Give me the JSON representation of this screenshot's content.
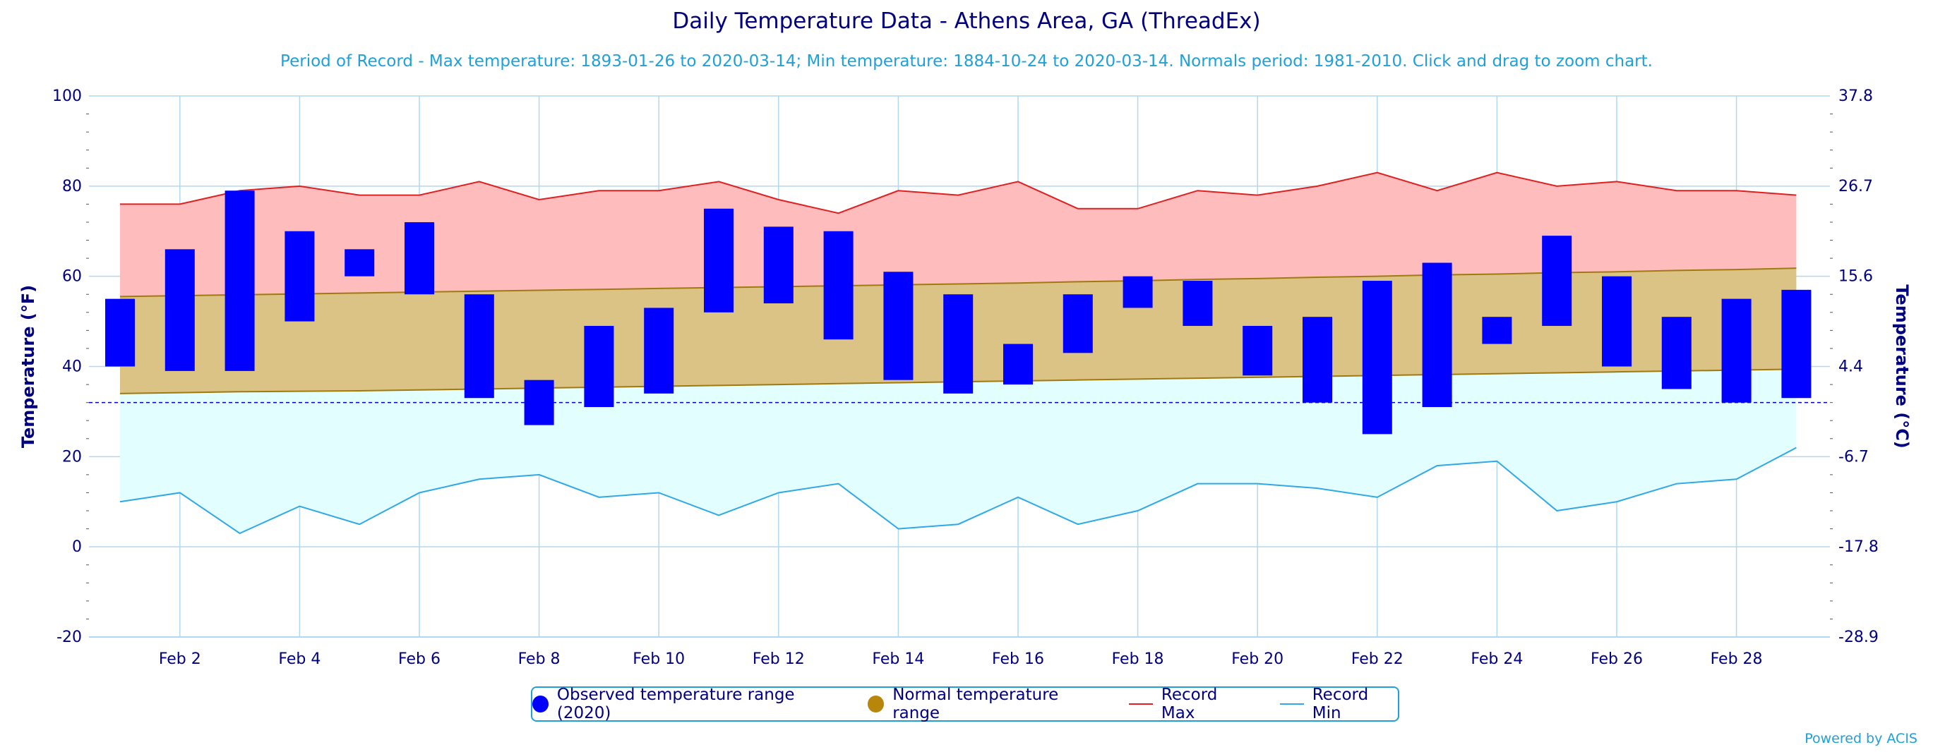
{
  "chart_data": {
    "type": "bar",
    "title": "Daily Temperature Data - Athens Area, GA (ThreadEx)",
    "subtitle": "Period of Record - Max temperature: 1893-01-26 to 2020-03-14; Min temperature: 1884-10-24 to 2020-03-14. Normals period: 1981-2010. Click and drag to zoom chart.",
    "ylabel": "Temperature (°F)",
    "y2label": "Temperature (°C)",
    "ylim": [
      -20,
      100
    ],
    "yticks": [
      -20,
      0,
      20,
      40,
      60,
      80,
      100
    ],
    "y2ticks": [
      "-28.9",
      "-17.8",
      "-6.7",
      "4.4",
      "15.6",
      "26.7",
      "37.8"
    ],
    "freezing_line": 32,
    "days": [
      1,
      2,
      3,
      4,
      5,
      6,
      7,
      8,
      9,
      10,
      11,
      12,
      13,
      14,
      15,
      16,
      17,
      18,
      19,
      20,
      21,
      22,
      23,
      24,
      25,
      26,
      27,
      28,
      29
    ],
    "xtick_labels": [
      "Feb 2",
      "Feb 4",
      "Feb 6",
      "Feb 8",
      "Feb 10",
      "Feb 12",
      "Feb 14",
      "Feb 16",
      "Feb 18",
      "Feb 20",
      "Feb 22",
      "Feb 24",
      "Feb 26",
      "Feb 28"
    ],
    "xtick_days": [
      2,
      4,
      6,
      8,
      10,
      12,
      14,
      16,
      18,
      20,
      22,
      24,
      26,
      28
    ],
    "series": [
      {
        "name": "Observed temperature range (2020)",
        "color": "#0000ff",
        "low": [
          40,
          39,
          39,
          50,
          60,
          56,
          33,
          27,
          31,
          34,
          52,
          54,
          46,
          37,
          34,
          36,
          43,
          53,
          49,
          38,
          32,
          25,
          31,
          45,
          49,
          40,
          35,
          32,
          33
        ],
        "high": [
          55,
          66,
          79,
          70,
          66,
          72,
          56,
          37,
          49,
          53,
          75,
          71,
          70,
          61,
          56,
          45,
          56,
          60,
          59,
          49,
          51,
          59,
          63,
          51,
          69,
          60,
          51,
          55,
          57
        ]
      },
      {
        "name": "Normal temperature range",
        "color": "#b8860b",
        "low": [
          34,
          34.2,
          34.4,
          34.5,
          34.6,
          34.8,
          35,
          35.2,
          35.4,
          35.6,
          35.8,
          36,
          36.2,
          36.4,
          36.6,
          36.8,
          37,
          37.2,
          37.4,
          37.6,
          37.8,
          38,
          38.2,
          38.4,
          38.6,
          38.8,
          39,
          39.2,
          39.4
        ],
        "high": [
          55.5,
          55.7,
          55.9,
          56.1,
          56.3,
          56.5,
          56.7,
          56.9,
          57.1,
          57.3,
          57.5,
          57.7,
          57.9,
          58.1,
          58.3,
          58.5,
          58.8,
          59,
          59.3,
          59.5,
          59.8,
          60,
          60.3,
          60.5,
          60.8,
          61,
          61.3,
          61.5,
          61.8
        ]
      },
      {
        "name": "Record Max",
        "color": "#e02020",
        "values": [
          76,
          76,
          79,
          80,
          78,
          78,
          81,
          77,
          79,
          79,
          81,
          77,
          74,
          79,
          78,
          81,
          75,
          75,
          79,
          78,
          80,
          83,
          79,
          83,
          80,
          81,
          79,
          79,
          78
        ]
      },
      {
        "name": "Record Min",
        "color": "#30a8e8",
        "values": [
          10,
          12,
          3,
          9,
          5,
          12,
          15,
          16,
          11,
          12,
          7,
          12,
          14,
          4,
          5,
          11,
          5,
          8,
          14,
          14,
          13,
          11,
          18,
          19,
          8,
          10,
          14,
          15,
          22
        ]
      }
    ],
    "colors": {
      "record_max_fill": "#ffbcbc",
      "normal_fill": "#dbc285",
      "record_min_fill": "#e2fefe",
      "grid": "#b0d8f0",
      "axis_text": "#000080",
      "freezing": "#0000cc"
    },
    "legend": [
      "Observed temperature range (2020)",
      "Normal temperature range",
      "Record Max",
      "Record Min"
    ],
    "legend_position": "bottom-center"
  },
  "credit": "Powered by ACIS"
}
